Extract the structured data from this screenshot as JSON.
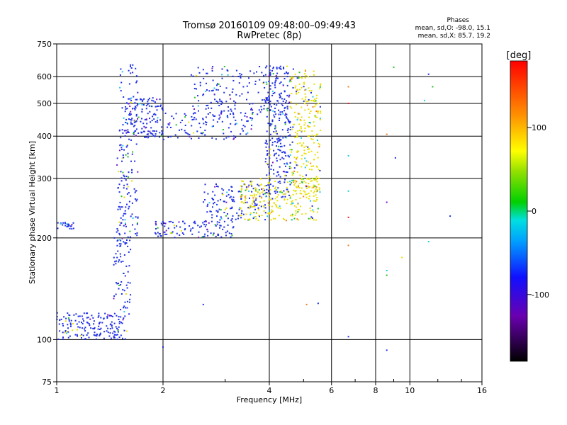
{
  "chart_data": {
    "type": "scatter",
    "title": "Tromsø 20160109 09:48:00–09:49:43",
    "subtitle": "RwPretec (8p)",
    "info": {
      "heading": "Phases",
      "line1": "mean, sd,O: -98.0, 15.1",
      "line2": "mean, sd,X:  85.7, 19.2"
    },
    "xlabel": "Frequency [MHz]",
    "ylabel": "Stationary phase Virtual Height [km]",
    "xscale": "log",
    "yscale": "log",
    "xlim": [
      1,
      16
    ],
    "ylim": [
      75,
      750
    ],
    "xticks": [
      "1",
      "2",
      "4",
      "6",
      "8",
      "10",
      "16"
    ],
    "yticks": [
      "75",
      "100",
      "200",
      "300",
      "400",
      "500",
      "600",
      "750"
    ],
    "grid_x": [
      2,
      4,
      6,
      8,
      10
    ],
    "grid_y": [
      100,
      200,
      300,
      400,
      500,
      600
    ],
    "colorbar": {
      "label": "[deg]",
      "range": [
        -180,
        180
      ],
      "ticks": [
        "100",
        "0",
        "-100"
      ]
    },
    "point_colors": {
      "o_mode": "#1f2fe6",
      "x_mode": "#e8e000",
      "green": "#22c022",
      "cyan": "#20c8e8",
      "orange": "#f08020",
      "red": "#e02020",
      "purple": "#7a18c8"
    },
    "series": [
      {
        "mode": "O",
        "segments": [
          {
            "f": [
              1.0,
              1.5
            ],
            "h": [
              100,
              120
            ],
            "n": 150
          },
          {
            "f": [
              1.0,
              1.12
            ],
            "h": [
              212,
              222
            ],
            "n": 25
          },
          {
            "f": [
              1.45,
              1.62
            ],
            "h": [
              100,
              210
            ],
            "n": 90
          },
          {
            "f": [
              1.48,
              1.7
            ],
            "h": [
              190,
              650
            ],
            "n": 180
          },
          {
            "f": [
              1.58,
              2.0
            ],
            "h": [
              395,
              520
            ],
            "n": 130
          },
          {
            "f": [
              1.9,
              3.2
            ],
            "h": [
              200,
              225
            ],
            "n": 110
          },
          {
            "f": [
              2.0,
              3.6
            ],
            "h": [
              390,
              470
            ],
            "n": 110
          },
          {
            "f": [
              2.4,
              4.6
            ],
            "h": [
              460,
              645
            ],
            "n": 170
          },
          {
            "f": [
              2.6,
              4.0
            ],
            "h": [
              225,
              290
            ],
            "n": 130
          },
          {
            "f": [
              3.9,
              4.6
            ],
            "h": [
              260,
              645
            ],
            "n": 260
          }
        ]
      },
      {
        "mode": "X",
        "segments": [
          {
            "f": [
              3.3,
              5.5
            ],
            "h": [
              225,
              300
            ],
            "n": 230
          },
          {
            "f": [
              4.6,
              5.6
            ],
            "h": [
              270,
              640
            ],
            "n": 260
          }
        ]
      }
    ],
    "sparse_points": [
      {
        "f": 6.7,
        "h": 560,
        "c": "orange"
      },
      {
        "f": 6.7,
        "h": 500,
        "c": "red"
      },
      {
        "f": 6.7,
        "h": 350,
        "c": "cyan"
      },
      {
        "f": 6.7,
        "h": 275,
        "c": "cyan"
      },
      {
        "f": 6.7,
        "h": 230,
        "c": "red"
      },
      {
        "f": 6.7,
        "h": 190,
        "c": "orange"
      },
      {
        "f": 6.7,
        "h": 102,
        "c": "o_mode"
      },
      {
        "f": 8.6,
        "h": 405,
        "c": "orange"
      },
      {
        "f": 8.6,
        "h": 255,
        "c": "purple"
      },
      {
        "f": 8.6,
        "h": 160,
        "c": "cyan"
      },
      {
        "f": 8.6,
        "h": 155,
        "c": "green"
      },
      {
        "f": 8.6,
        "h": 93,
        "c": "o_mode"
      },
      {
        "f": 9.0,
        "h": 640,
        "c": "green"
      },
      {
        "f": 9.1,
        "h": 345,
        "c": "o_mode"
      },
      {
        "f": 9.5,
        "h": 175,
        "c": "x_mode"
      },
      {
        "f": 11.3,
        "h": 610,
        "c": "o_mode"
      },
      {
        "f": 11.0,
        "h": 510,
        "c": "cyan"
      },
      {
        "f": 11.6,
        "h": 560,
        "c": "green"
      },
      {
        "f": 11.3,
        "h": 195,
        "c": "cyan"
      },
      {
        "f": 13.0,
        "h": 232,
        "c": "o_mode"
      },
      {
        "f": 5.1,
        "h": 127,
        "c": "orange"
      },
      {
        "f": 5.5,
        "h": 128,
        "c": "o_mode"
      },
      {
        "f": 2.6,
        "h": 127,
        "c": "o_mode"
      },
      {
        "f": 2.0,
        "h": 95,
        "c": "o_mode"
      }
    ]
  }
}
